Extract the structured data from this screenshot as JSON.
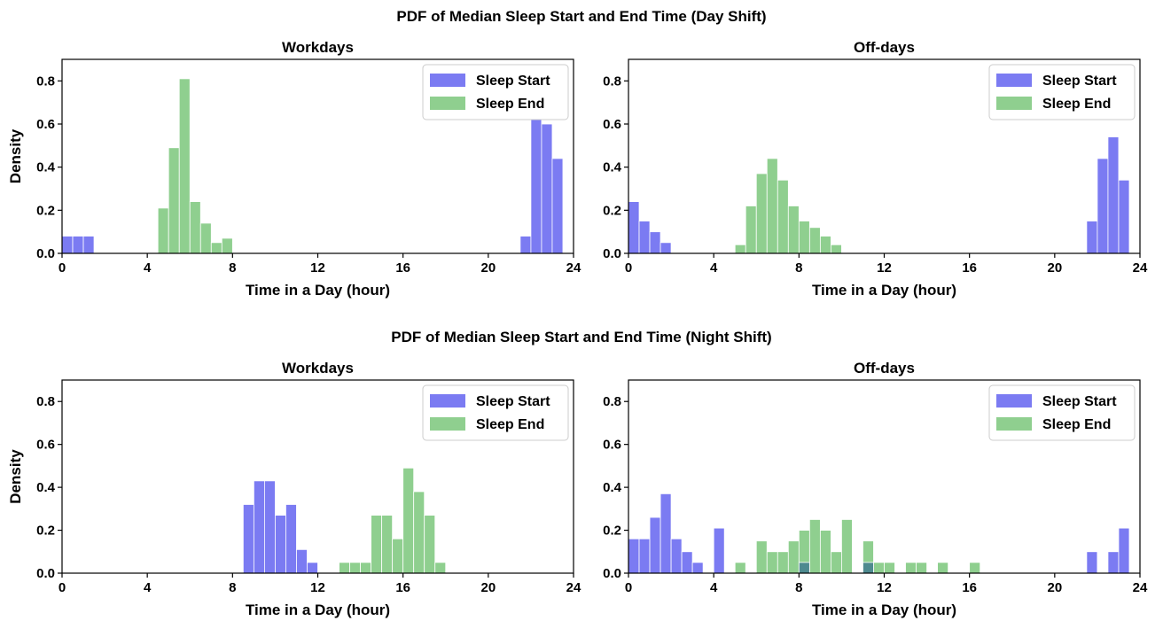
{
  "figure": {
    "titles": [
      "PDF of Median Sleep Start and End Time (Day Shift)",
      "PDF of Median Sleep Start and End Time (Night Shift)"
    ]
  },
  "colors": {
    "sleep_start": "#7b7bf2",
    "sleep_end": "#8fcf8f",
    "overlap": "#4e8a8f"
  },
  "chart_data": [
    {
      "type": "histogram",
      "title": "Workdays",
      "group": "Day Shift",
      "xlabel": "Time in a Day (hour)",
      "ylabel": "Density",
      "xlim": [
        0,
        24
      ],
      "ylim": [
        0,
        0.9
      ],
      "xticks": [
        0,
        4,
        8,
        12,
        16,
        20,
        24
      ],
      "yticks": [
        0.0,
        0.2,
        0.4,
        0.6,
        0.8
      ],
      "legend": "top-right",
      "bin_width": 0.5,
      "series": [
        {
          "name": "Sleep Start",
          "color_key": "sleep_start",
          "bins": [
            [
              0,
              0.08
            ],
            [
              0.5,
              0.08
            ],
            [
              1.0,
              0.08
            ],
            [
              21.5,
              0.08
            ],
            [
              22.0,
              0.63
            ],
            [
              22.5,
              0.6
            ],
            [
              23.0,
              0.44
            ]
          ]
        },
        {
          "name": "Sleep End",
          "color_key": "sleep_end",
          "bins": [
            [
              4.5,
              0.21
            ],
            [
              5.0,
              0.49
            ],
            [
              5.5,
              0.81
            ],
            [
              6.0,
              0.24
            ],
            [
              6.5,
              0.14
            ],
            [
              7.0,
              0.05
            ],
            [
              7.5,
              0.07
            ]
          ]
        }
      ]
    },
    {
      "type": "histogram",
      "title": "Off-days",
      "group": "Day Shift",
      "xlabel": "Time in a Day (hour)",
      "ylabel": "",
      "xlim": [
        0,
        24
      ],
      "ylim": [
        0,
        0.9
      ],
      "xticks": [
        0,
        4,
        8,
        12,
        16,
        20,
        24
      ],
      "yticks": [
        0.0,
        0.2,
        0.4,
        0.6,
        0.8
      ],
      "legend": "top-right",
      "bin_width": 0.5,
      "series": [
        {
          "name": "Sleep Start",
          "color_key": "sleep_start",
          "bins": [
            [
              0,
              0.24
            ],
            [
              0.5,
              0.15
            ],
            [
              1.0,
              0.1
            ],
            [
              1.5,
              0.05
            ],
            [
              21.5,
              0.15
            ],
            [
              22.0,
              0.44
            ],
            [
              22.5,
              0.54
            ],
            [
              23.0,
              0.34
            ]
          ]
        },
        {
          "name": "Sleep End",
          "color_key": "sleep_end",
          "bins": [
            [
              5.0,
              0.04
            ],
            [
              5.5,
              0.22
            ],
            [
              6.0,
              0.37
            ],
            [
              6.5,
              0.44
            ],
            [
              7.0,
              0.34
            ],
            [
              7.5,
              0.22
            ],
            [
              8.0,
              0.15
            ],
            [
              8.5,
              0.12
            ],
            [
              9.0,
              0.08
            ],
            [
              9.5,
              0.04
            ]
          ]
        }
      ]
    },
    {
      "type": "histogram",
      "title": "Workdays",
      "group": "Night Shift",
      "xlabel": "Time in a Day (hour)",
      "ylabel": "Density",
      "xlim": [
        0,
        24
      ],
      "ylim": [
        0,
        0.9
      ],
      "xticks": [
        0,
        4,
        8,
        12,
        16,
        20,
        24
      ],
      "yticks": [
        0.0,
        0.2,
        0.4,
        0.6,
        0.8
      ],
      "legend": "top-right",
      "bin_width": 0.5,
      "series": [
        {
          "name": "Sleep Start",
          "color_key": "sleep_start",
          "bins": [
            [
              8.5,
              0.32
            ],
            [
              9.0,
              0.43
            ],
            [
              9.5,
              0.43
            ],
            [
              10.0,
              0.27
            ],
            [
              10.5,
              0.32
            ],
            [
              11.0,
              0.11
            ],
            [
              11.5,
              0.05
            ]
          ]
        },
        {
          "name": "Sleep End",
          "color_key": "sleep_end",
          "bins": [
            [
              13.0,
              0.05
            ],
            [
              13.5,
              0.05
            ],
            [
              14.0,
              0.05
            ],
            [
              14.5,
              0.27
            ],
            [
              15.0,
              0.27
            ],
            [
              15.5,
              0.16
            ],
            [
              16.0,
              0.49
            ],
            [
              16.5,
              0.38
            ],
            [
              17.0,
              0.27
            ],
            [
              17.5,
              0.05
            ]
          ]
        }
      ]
    },
    {
      "type": "histogram",
      "title": "Off-days",
      "group": "Night Shift",
      "xlabel": "Time in a Day (hour)",
      "ylabel": "",
      "xlim": [
        0,
        24
      ],
      "ylim": [
        0,
        0.9
      ],
      "xticks": [
        0,
        4,
        8,
        12,
        16,
        20,
        24
      ],
      "yticks": [
        0.0,
        0.2,
        0.4,
        0.6,
        0.8
      ],
      "legend": "top-right",
      "bin_width": 0.5,
      "series": [
        {
          "name": "Sleep Start",
          "color_key": "sleep_start",
          "bins": [
            [
              0,
              0.16
            ],
            [
              0.5,
              0.16
            ],
            [
              1.0,
              0.26
            ],
            [
              1.5,
              0.37
            ],
            [
              2.0,
              0.16
            ],
            [
              2.5,
              0.1
            ],
            [
              3.0,
              0.05
            ],
            [
              4.0,
              0.21
            ],
            [
              8.0,
              0.05
            ],
            [
              11.0,
              0.05
            ],
            [
              21.5,
              0.1
            ],
            [
              22.5,
              0.1
            ],
            [
              23.0,
              0.21
            ]
          ]
        },
        {
          "name": "Sleep End",
          "color_key": "sleep_end",
          "bins": [
            [
              5.0,
              0.05
            ],
            [
              6.0,
              0.15
            ],
            [
              6.5,
              0.1
            ],
            [
              7.0,
              0.1
            ],
            [
              7.5,
              0.15
            ],
            [
              8.0,
              0.2
            ],
            [
              8.5,
              0.25
            ],
            [
              9.0,
              0.2
            ],
            [
              9.5,
              0.1
            ],
            [
              10.0,
              0.25
            ],
            [
              11.0,
              0.15
            ],
            [
              11.5,
              0.05
            ],
            [
              12.0,
              0.05
            ],
            [
              13.0,
              0.05
            ],
            [
              13.5,
              0.05
            ],
            [
              14.5,
              0.05
            ],
            [
              16.0,
              0.05
            ]
          ]
        }
      ]
    }
  ]
}
